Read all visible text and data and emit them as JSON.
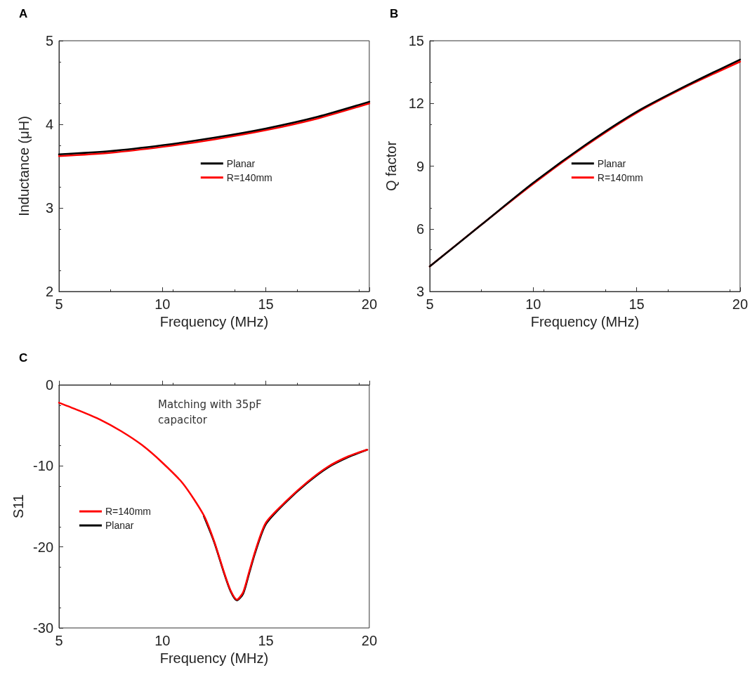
{
  "chart_data": [
    {
      "type": "line",
      "title": "A",
      "xlabel": "Frequency (MHz)",
      "ylabel": "Inductance (μH)",
      "x": [
        5,
        7.5,
        10,
        12.5,
        15,
        17.5,
        20
      ],
      "series": [
        {
          "name": "Planar",
          "color": "#000000",
          "values": [
            3.64,
            3.68,
            3.75,
            3.84,
            3.95,
            4.09,
            4.27
          ]
        },
        {
          "name": "R=140mm",
          "color": "#ff0000",
          "values": [
            3.62,
            3.66,
            3.73,
            3.82,
            3.93,
            4.07,
            4.25
          ]
        }
      ],
      "xlim": [
        5,
        20
      ],
      "xticks": [
        5,
        10,
        15,
        20
      ],
      "ylim": [
        2,
        5
      ],
      "yticks": [
        2,
        3,
        4,
        5
      ],
      "legend": "center",
      "grid": false,
      "marker": "none",
      "line_style": "solid"
    },
    {
      "type": "line",
      "title": "B",
      "xlabel": "Frequency (MHz)",
      "ylabel": "Q factor",
      "x": [
        5,
        7.5,
        10,
        12.5,
        15,
        17.5,
        20
      ],
      "series": [
        {
          "name": "Planar",
          "color": "#000000",
          "values": [
            4.2,
            6.2,
            8.2,
            10.0,
            11.6,
            12.9,
            14.1
          ]
        },
        {
          "name": "R=140mm",
          "color": "#ff0000",
          "values": [
            4.2,
            6.2,
            8.15,
            9.95,
            11.55,
            12.85,
            14.0
          ]
        }
      ],
      "xlim": [
        5,
        20
      ],
      "xticks": [
        5,
        10,
        15,
        20
      ],
      "ylim": [
        3,
        15
      ],
      "yticks": [
        3,
        6,
        9,
        12,
        15
      ],
      "legend": "center",
      "grid": false,
      "marker": "none",
      "line_style": "solid"
    },
    {
      "type": "line",
      "title": "C",
      "xlabel": "Frequency (MHz)",
      "ylabel": "S11",
      "annotations": [
        "Matching with 35pF capacitor"
      ],
      "x": [
        5,
        6,
        7,
        8,
        9,
        10,
        11,
        12,
        12.5,
        13,
        13.3,
        13.6,
        13.9,
        14.2,
        14.5,
        15,
        16,
        17,
        18,
        19,
        19.9
      ],
      "series": [
        {
          "name": "R=140mm",
          "color": "#ff0000",
          "values": [
            -2.2,
            -3.2,
            -4.3,
            -5.7,
            -7.4,
            -9.6,
            -12.2,
            -16.1,
            -19.3,
            -23.3,
            -25.4,
            -26.5,
            -25.6,
            -23.0,
            -20.4,
            -17.0,
            -14.3,
            -12.0,
            -10.1,
            -8.8,
            -8.0
          ]
        },
        {
          "name": "Planar",
          "color": "#000000",
          "values": [
            null,
            null,
            null,
            null,
            null,
            null,
            null,
            -16.2,
            -19.4,
            -23.4,
            -25.5,
            -26.6,
            -25.8,
            -23.2,
            -20.6,
            -17.2,
            -14.4,
            -12.1,
            -10.2,
            -8.9,
            -8.0
          ]
        }
      ],
      "xlim": [
        5,
        20
      ],
      "xticks": [
        5,
        10,
        15,
        20
      ],
      "ylim": [
        -30,
        0
      ],
      "yticks": [
        -30,
        -20,
        -10,
        0
      ],
      "legend": "center left",
      "grid": false,
      "marker": "none",
      "line_style": "solid"
    }
  ]
}
